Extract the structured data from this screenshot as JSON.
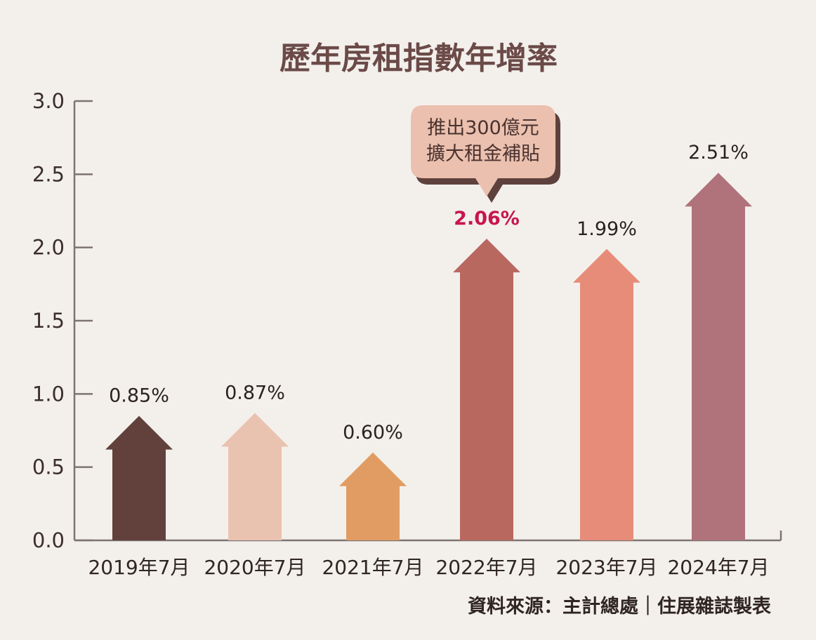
{
  "chart_data": {
    "type": "bar",
    "title": "歷年房租指數年增率",
    "categories": [
      "2019年7月",
      "2020年7月",
      "2021年7月",
      "2022年7月",
      "2023年7月",
      "2024年7月"
    ],
    "values": [
      0.85,
      0.87,
      0.6,
      2.06,
      1.99,
      2.51
    ],
    "value_labels": [
      "0.85%",
      "0.87%",
      "0.60%",
      "2.06%",
      "1.99%",
      "2.51%"
    ],
    "highlight_index": 3,
    "bar_colors": [
      "#62413c",
      "#eac2b0",
      "#e19c63",
      "#b96860",
      "#e78c79",
      "#b0737b"
    ],
    "highlight_label_color": "#c8154f",
    "ylim": [
      0,
      3.0
    ],
    "yticks": [
      "0.0",
      "0.5",
      "1.0",
      "1.5",
      "2.0",
      "2.5",
      "3.0"
    ],
    "ytick_values": [
      0,
      0.5,
      1.0,
      1.5,
      2.0,
      2.5,
      3.0
    ],
    "xlabel": "",
    "ylabel": "",
    "grid": false,
    "annotation": {
      "target_index": 3,
      "lines": [
        "推出300億元",
        "擴大租金補貼"
      ],
      "fill": "#ebc0ae",
      "shadow": "#5e413d"
    },
    "source": "資料來源：主計總處｜住展雜誌製表"
  }
}
